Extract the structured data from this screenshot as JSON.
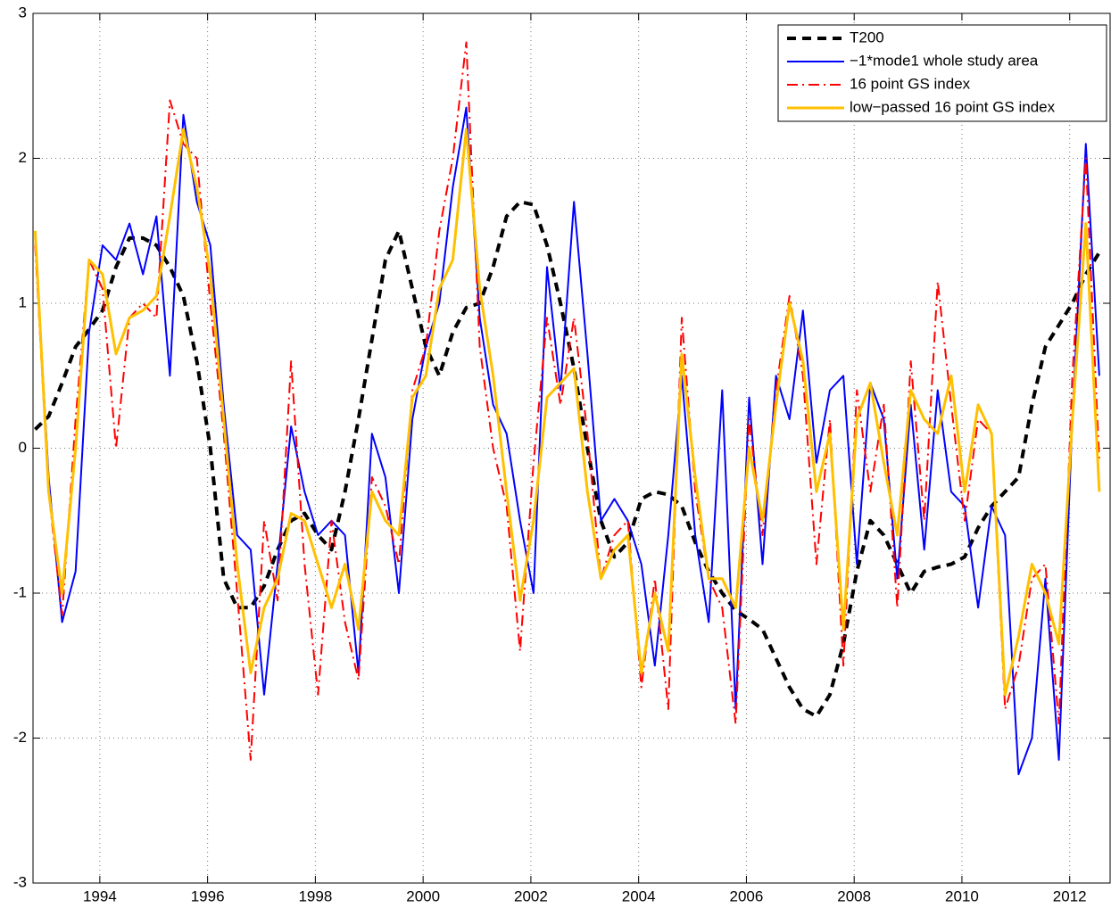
{
  "chart_data": {
    "type": "line",
    "x": [
      1992.8,
      1993.05,
      1993.3,
      1993.55,
      1993.8,
      1994.05,
      1994.3,
      1994.55,
      1994.8,
      1995.05,
      1995.3,
      1995.55,
      1995.8,
      1996.05,
      1996.3,
      1996.55,
      1996.8,
      1997.05,
      1997.3,
      1997.55,
      1997.8,
      1998.05,
      1998.3,
      1998.55,
      1998.8,
      1999.05,
      1999.3,
      1999.55,
      1999.8,
      2000.05,
      2000.3,
      2000.55,
      2000.8,
      2001.05,
      2001.3,
      2001.55,
      2001.8,
      2002.05,
      2002.3,
      2002.55,
      2002.8,
      2003.05,
      2003.3,
      2003.55,
      2003.8,
      2004.05,
      2004.3,
      2004.55,
      2004.8,
      2005.05,
      2005.3,
      2005.55,
      2005.8,
      2006.05,
      2006.3,
      2006.55,
      2006.8,
      2007.05,
      2007.3,
      2007.55,
      2007.8,
      2008.05,
      2008.3,
      2008.55,
      2008.8,
      2009.05,
      2009.3,
      2009.55,
      2009.8,
      2010.05,
      2010.3,
      2010.55,
      2010.8,
      2011.05,
      2011.3,
      2011.55,
      2011.8,
      2012.05,
      2012.3,
      2012.55
    ],
    "series": [
      {
        "name": "T200",
        "color": "#000000",
        "linestyle": "dashed",
        "linewidth": 4,
        "values": [
          0.13,
          0.22,
          0.45,
          0.7,
          0.82,
          0.95,
          1.25,
          1.45,
          1.45,
          1.4,
          1.25,
          1.05,
          0.6,
          0.0,
          -0.9,
          -1.1,
          -1.1,
          -0.95,
          -0.7,
          -0.5,
          -0.45,
          -0.6,
          -0.7,
          -0.3,
          0.2,
          0.75,
          1.3,
          1.5,
          1.1,
          0.7,
          0.5,
          0.8,
          0.97,
          1.0,
          1.25,
          1.6,
          1.7,
          1.68,
          1.4,
          1.0,
          0.55,
          0.0,
          -0.5,
          -0.75,
          -0.65,
          -0.35,
          -0.3,
          -0.32,
          -0.4,
          -0.65,
          -0.85,
          -1.0,
          -1.12,
          -1.18,
          -1.25,
          -1.45,
          -1.65,
          -1.8,
          -1.85,
          -1.7,
          -1.35,
          -0.85,
          -0.5,
          -0.6,
          -0.8,
          -1.0,
          -0.85,
          -0.82,
          -0.8,
          -0.75,
          -0.55,
          -0.4,
          -0.3,
          -0.2,
          0.3,
          0.7,
          0.85,
          1.0,
          1.2,
          1.35
        ]
      },
      {
        "name": "−1*mode1 whole study area",
        "color": "#0000ff",
        "linestyle": "solid",
        "linewidth": 2,
        "values": [
          1.45,
          -0.2,
          -1.2,
          -0.85,
          0.8,
          1.4,
          1.3,
          1.55,
          1.2,
          1.6,
          0.5,
          2.3,
          1.7,
          1.4,
          0.3,
          -0.6,
          -0.7,
          -1.7,
          -0.8,
          0.15,
          -0.3,
          -0.6,
          -0.5,
          -0.6,
          -1.55,
          0.1,
          -0.2,
          -1.0,
          0.2,
          0.7,
          1.0,
          1.8,
          2.35,
          0.9,
          0.3,
          0.1,
          -0.5,
          -1.0,
          1.25,
          0.4,
          1.7,
          0.65,
          -0.5,
          -0.35,
          -0.5,
          -0.8,
          -1.5,
          -0.6,
          0.5,
          -0.6,
          -1.2,
          0.4,
          -1.8,
          0.35,
          -0.8,
          0.5,
          0.2,
          0.95,
          -0.1,
          0.4,
          0.5,
          -0.8,
          0.45,
          0.2,
          -0.9,
          0.3,
          -0.7,
          0.4,
          -0.3,
          -0.4,
          -1.1,
          -0.4,
          -0.6,
          -2.25,
          -2.0,
          -0.9,
          -2.15,
          0.2,
          2.1,
          0.5
        ]
      },
      {
        "name": "16 point GS index",
        "color": "#ff0000",
        "linestyle": "dashdot",
        "linewidth": 2,
        "values": [
          1.4,
          -0.3,
          -1.15,
          0.2,
          1.3,
          1.1,
          0.0,
          0.9,
          1.0,
          0.9,
          2.4,
          2.1,
          2.0,
          1.0,
          0.1,
          -1.0,
          -2.15,
          -0.5,
          -1.05,
          0.6,
          -0.8,
          -1.7,
          -0.5,
          -1.2,
          -1.6,
          -0.2,
          -0.4,
          -0.8,
          0.4,
          0.7,
          1.5,
          2.0,
          2.8,
          0.7,
          0.0,
          -0.4,
          -1.4,
          -0.1,
          0.9,
          0.3,
          0.9,
          0.1,
          -0.9,
          -0.6,
          -0.5,
          -1.65,
          -0.9,
          -1.8,
          0.9,
          -0.3,
          -0.9,
          -1.1,
          -1.9,
          0.2,
          -0.6,
          0.4,
          1.05,
          0.5,
          -0.8,
          0.2,
          -1.5,
          0.4,
          -0.3,
          0.3,
          -1.1,
          0.6,
          -0.5,
          1.15,
          0.3,
          -0.5,
          0.2,
          0.1,
          -1.8,
          -1.5,
          -0.9,
          -0.8,
          -1.9,
          0.5,
          2.0,
          -0.1
        ]
      },
      {
        "name": "low−passed 16 point GS index",
        "color": "#ffc000",
        "linestyle": "solid",
        "linewidth": 3,
        "values": [
          1.5,
          -0.3,
          -1.0,
          0.0,
          1.3,
          1.2,
          0.65,
          0.9,
          0.95,
          1.05,
          1.6,
          2.2,
          1.8,
          1.2,
          0.2,
          -0.8,
          -1.55,
          -1.1,
          -0.9,
          -0.45,
          -0.5,
          -0.8,
          -1.1,
          -0.8,
          -1.25,
          -0.3,
          -0.5,
          -0.6,
          0.35,
          0.5,
          1.1,
          1.3,
          2.2,
          1.1,
          0.5,
          -0.3,
          -1.05,
          -0.5,
          0.35,
          0.45,
          0.55,
          -0.3,
          -0.9,
          -0.7,
          -0.6,
          -1.55,
          -1.0,
          -1.4,
          0.65,
          -0.2,
          -0.9,
          -0.9,
          -1.1,
          0.0,
          -0.5,
          0.3,
          1.0,
          0.6,
          -0.3,
          0.1,
          -1.25,
          0.2,
          0.45,
          -0.1,
          -0.6,
          0.4,
          0.2,
          0.1,
          0.5,
          -0.3,
          0.3,
          0.1,
          -1.7,
          -1.3,
          -0.8,
          -1.0,
          -1.35,
          0.2,
          1.55,
          -0.3
        ]
      }
    ],
    "xlim": [
      1992.76,
      2012.75
    ],
    "ylim": [
      -3,
      3
    ],
    "xticks": [
      1994,
      1996,
      1998,
      2000,
      2002,
      2004,
      2006,
      2008,
      2010,
      2012
    ],
    "yticks": [
      -3,
      -2,
      -1,
      0,
      1,
      2,
      3
    ],
    "grid": true,
    "legend": "upper right"
  }
}
